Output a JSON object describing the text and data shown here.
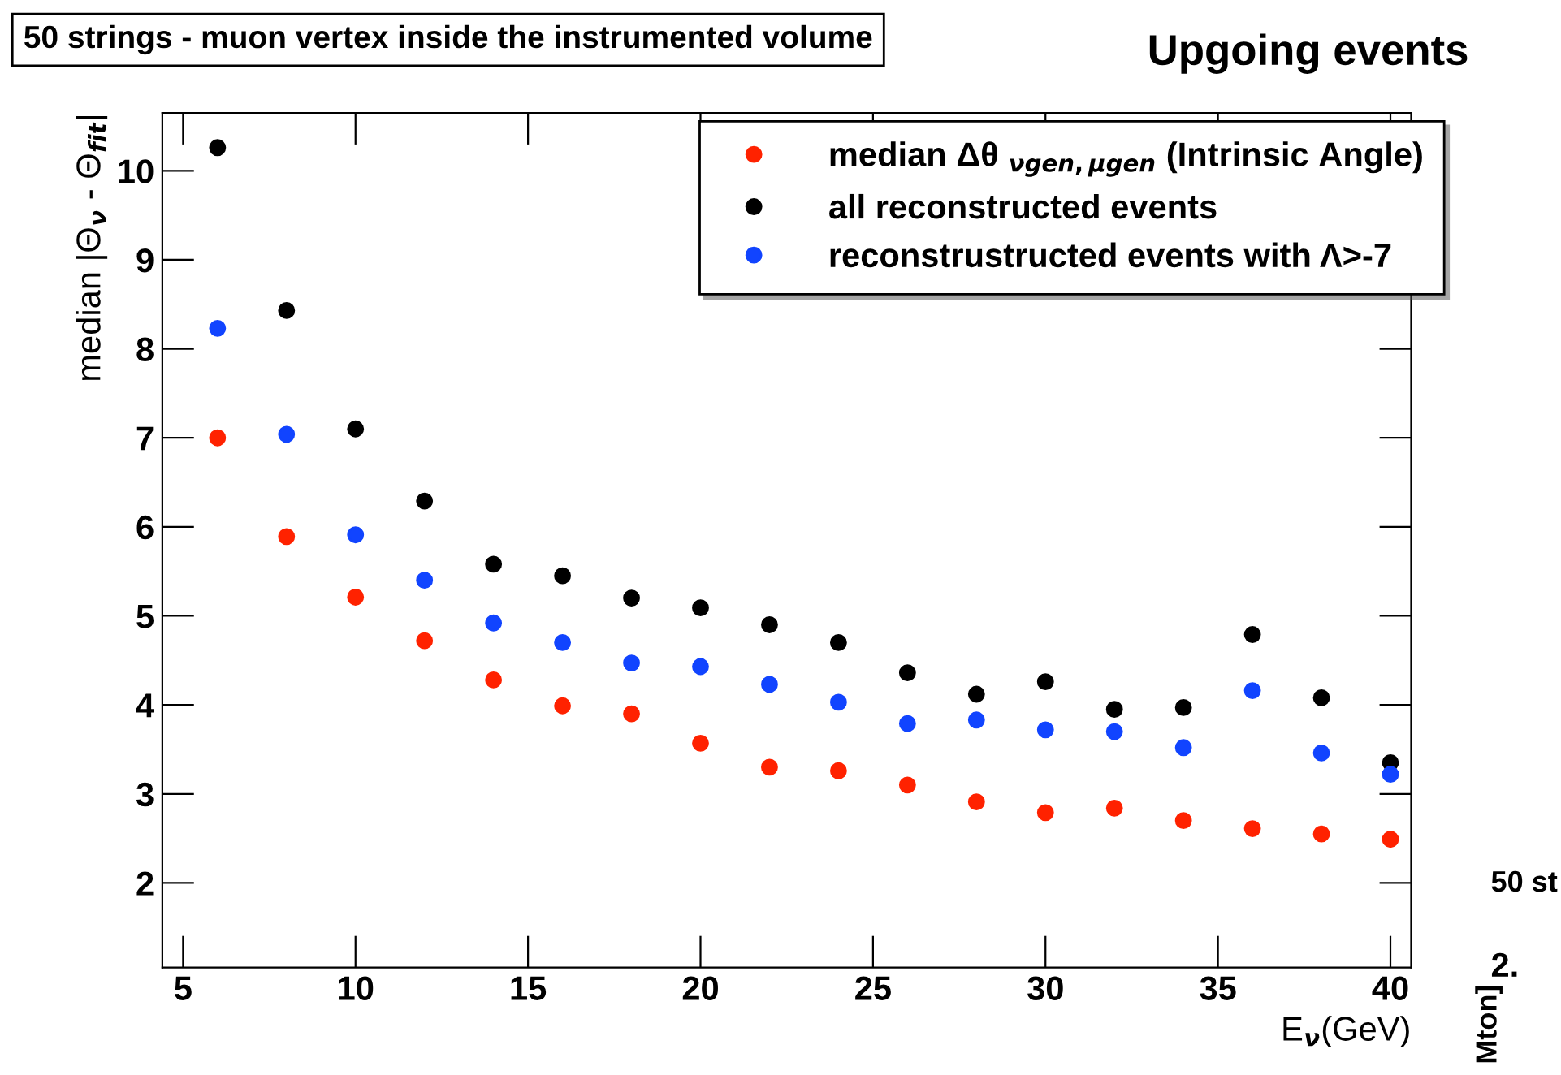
{
  "chart_data": {
    "type": "scatter",
    "title": "50 strings - muon vertex inside the instrumented volume",
    "subtitle": "Upgoing events",
    "xlabel": "E$_{ν}$(GeV)",
    "ylabel": "median |Θ$_{ν}$ - Θ$_{fit}$|",
    "x": [
      6,
      8,
      10,
      12,
      14,
      16,
      18,
      20,
      22,
      24,
      26,
      28,
      30,
      32,
      34,
      36,
      38,
      40
    ],
    "series": [
      {
        "name": "median Δθ $_{νgen,μgen}$ (Intrinsic Angle)",
        "color": "#ff2200",
        "values": [
          7.0,
          5.89,
          5.21,
          4.72,
          4.28,
          3.99,
          3.9,
          3.57,
          3.3,
          3.26,
          3.1,
          2.91,
          2.79,
          2.84,
          2.7,
          2.61,
          2.55,
          2.49
        ]
      },
      {
        "name": "all reconstructed events",
        "color": "#000000",
        "values": [
          10.26,
          8.43,
          7.1,
          6.29,
          5.58,
          5.45,
          5.2,
          5.09,
          4.9,
          4.7,
          4.36,
          4.12,
          4.26,
          3.95,
          3.97,
          4.79,
          4.08,
          3.35
        ]
      },
      {
        "name": "reconstrustructed events with Λ>-7",
        "color": "#1144ff",
        "values": [
          8.23,
          7.04,
          5.91,
          5.4,
          4.92,
          4.7,
          4.47,
          4.43,
          4.23,
          4.03,
          3.79,
          3.83,
          3.72,
          3.7,
          3.52,
          4.16,
          3.46,
          3.22
        ]
      }
    ],
    "xlim": [
      4.4,
      40.6
    ],
    "ylim": [
      1.05,
      10.65
    ],
    "xticks": [
      5,
      10,
      15,
      20,
      25,
      30,
      35,
      40
    ],
    "yticks": [
      2,
      3,
      4,
      5,
      6,
      7,
      8,
      9,
      10
    ],
    "grid": false,
    "legend": "top right",
    "marker": "circle",
    "annotations": [
      "50 st",
      "2.",
      "Mton]"
    ]
  }
}
